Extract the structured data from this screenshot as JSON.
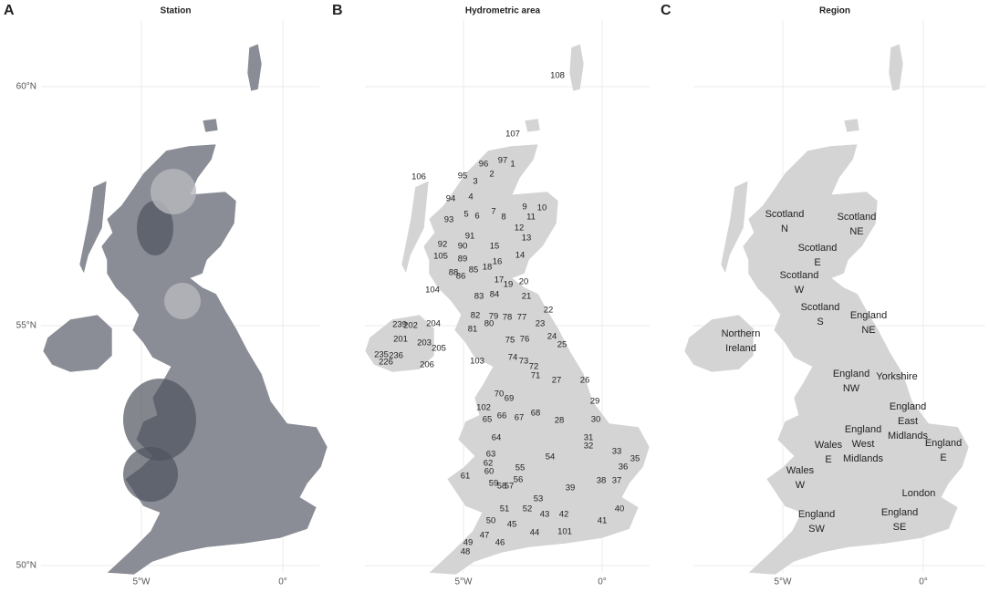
{
  "panels": [
    {
      "letter": "A",
      "title": "Station"
    },
    {
      "letter": "B",
      "title": "Hydrometric area",
      "labels": [
        "108",
        "107",
        "97",
        "1",
        "96",
        "95",
        "2",
        "3",
        "106",
        "94",
        "4",
        "9",
        "10",
        "5",
        "6",
        "7",
        "8",
        "93",
        "12",
        "11",
        "91",
        "13",
        "92",
        "90",
        "15",
        "105",
        "89",
        "14",
        "16",
        "18",
        "85",
        "88",
        "86",
        "17",
        "19",
        "20",
        "104",
        "83",
        "84",
        "21",
        "22",
        "82",
        "79",
        "78",
        "77",
        "239",
        "202",
        "204",
        "80",
        "23",
        "81",
        "201",
        "24",
        "203",
        "75",
        "76",
        "25",
        "205",
        "235",
        "236",
        "74",
        "73",
        "226",
        "103",
        "206",
        "72",
        "71",
        "27",
        "26",
        "70",
        "69",
        "29",
        "102",
        "66",
        "67",
        "68",
        "30",
        "65",
        "28",
        "64",
        "31",
        "32",
        "33",
        "63",
        "35",
        "62",
        "54",
        "60",
        "55",
        "61",
        "56",
        "38",
        "37",
        "59",
        "58",
        "57",
        "36",
        "39",
        "53",
        "40",
        "51",
        "52",
        "43",
        "42",
        "41",
        "50",
        "45",
        "101",
        "44",
        "47",
        "49",
        "46",
        "48"
      ]
    },
    {
      "letter": "C",
      "title": "Region",
      "labels": [
        {
          "lines": [
            "Scotland",
            "N"
          ]
        },
        {
          "lines": [
            "Scotland",
            "NE"
          ]
        },
        {
          "lines": [
            "Scotland",
            "E"
          ]
        },
        {
          "lines": [
            "Scotland",
            "W"
          ]
        },
        {
          "lines": [
            "Scotland",
            "S"
          ]
        },
        {
          "lines": [
            "England",
            "NE"
          ]
        },
        {
          "lines": [
            "Northern",
            "Ireland"
          ]
        },
        {
          "lines": [
            "England",
            "NW"
          ]
        },
        {
          "lines": [
            "Yorkshire"
          ]
        },
        {
          "lines": [
            "England",
            "East",
            "Midlands"
          ]
        },
        {
          "lines": [
            "England",
            "West",
            "Midlands"
          ]
        },
        {
          "lines": [
            "Wales",
            "E"
          ]
        },
        {
          "lines": [
            "England",
            "E"
          ]
        },
        {
          "lines": [
            "Wales",
            "W"
          ]
        },
        {
          "lines": [
            "London"
          ]
        },
        {
          "lines": [
            "England",
            "SW"
          ]
        },
        {
          "lines": [
            "England",
            "SE"
          ]
        }
      ]
    }
  ],
  "axes": {
    "lat": [
      "60°N",
      "55°N",
      "50°N"
    ],
    "lon": [
      "5°W",
      "0°"
    ]
  }
}
